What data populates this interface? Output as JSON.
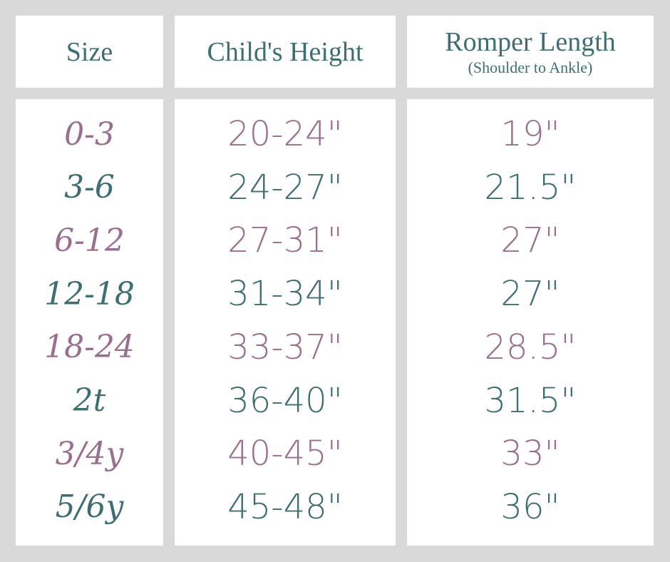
{
  "colors": {
    "background": "#d9d9d9",
    "teal": "#3d6f72",
    "mauve": "#9a6e8e"
  },
  "headers": {
    "size": "Size",
    "height": "Child's Height",
    "length": "Romper Length",
    "length_sub": "(Shoulder to Ankle)"
  },
  "rows": [
    {
      "size": "0-3",
      "height": "20-24\"",
      "length": "19\""
    },
    {
      "size": "3-6",
      "height": "24-27\"",
      "length": "21.5\""
    },
    {
      "size": "6-12",
      "height": "27-31\"",
      "length": "27\""
    },
    {
      "size": "12-18",
      "height": "31-34\"",
      "length": "27\""
    },
    {
      "size": "18-24",
      "height": "33-37\"",
      "length": "28.5\""
    },
    {
      "size": "2t",
      "height": "36-40\"",
      "length": "31.5\""
    },
    {
      "size": "3/4y",
      "height": "40-45\"",
      "length": "33\""
    },
    {
      "size": "5/6y",
      "height": "45-48\"",
      "length": "36\""
    }
  ]
}
